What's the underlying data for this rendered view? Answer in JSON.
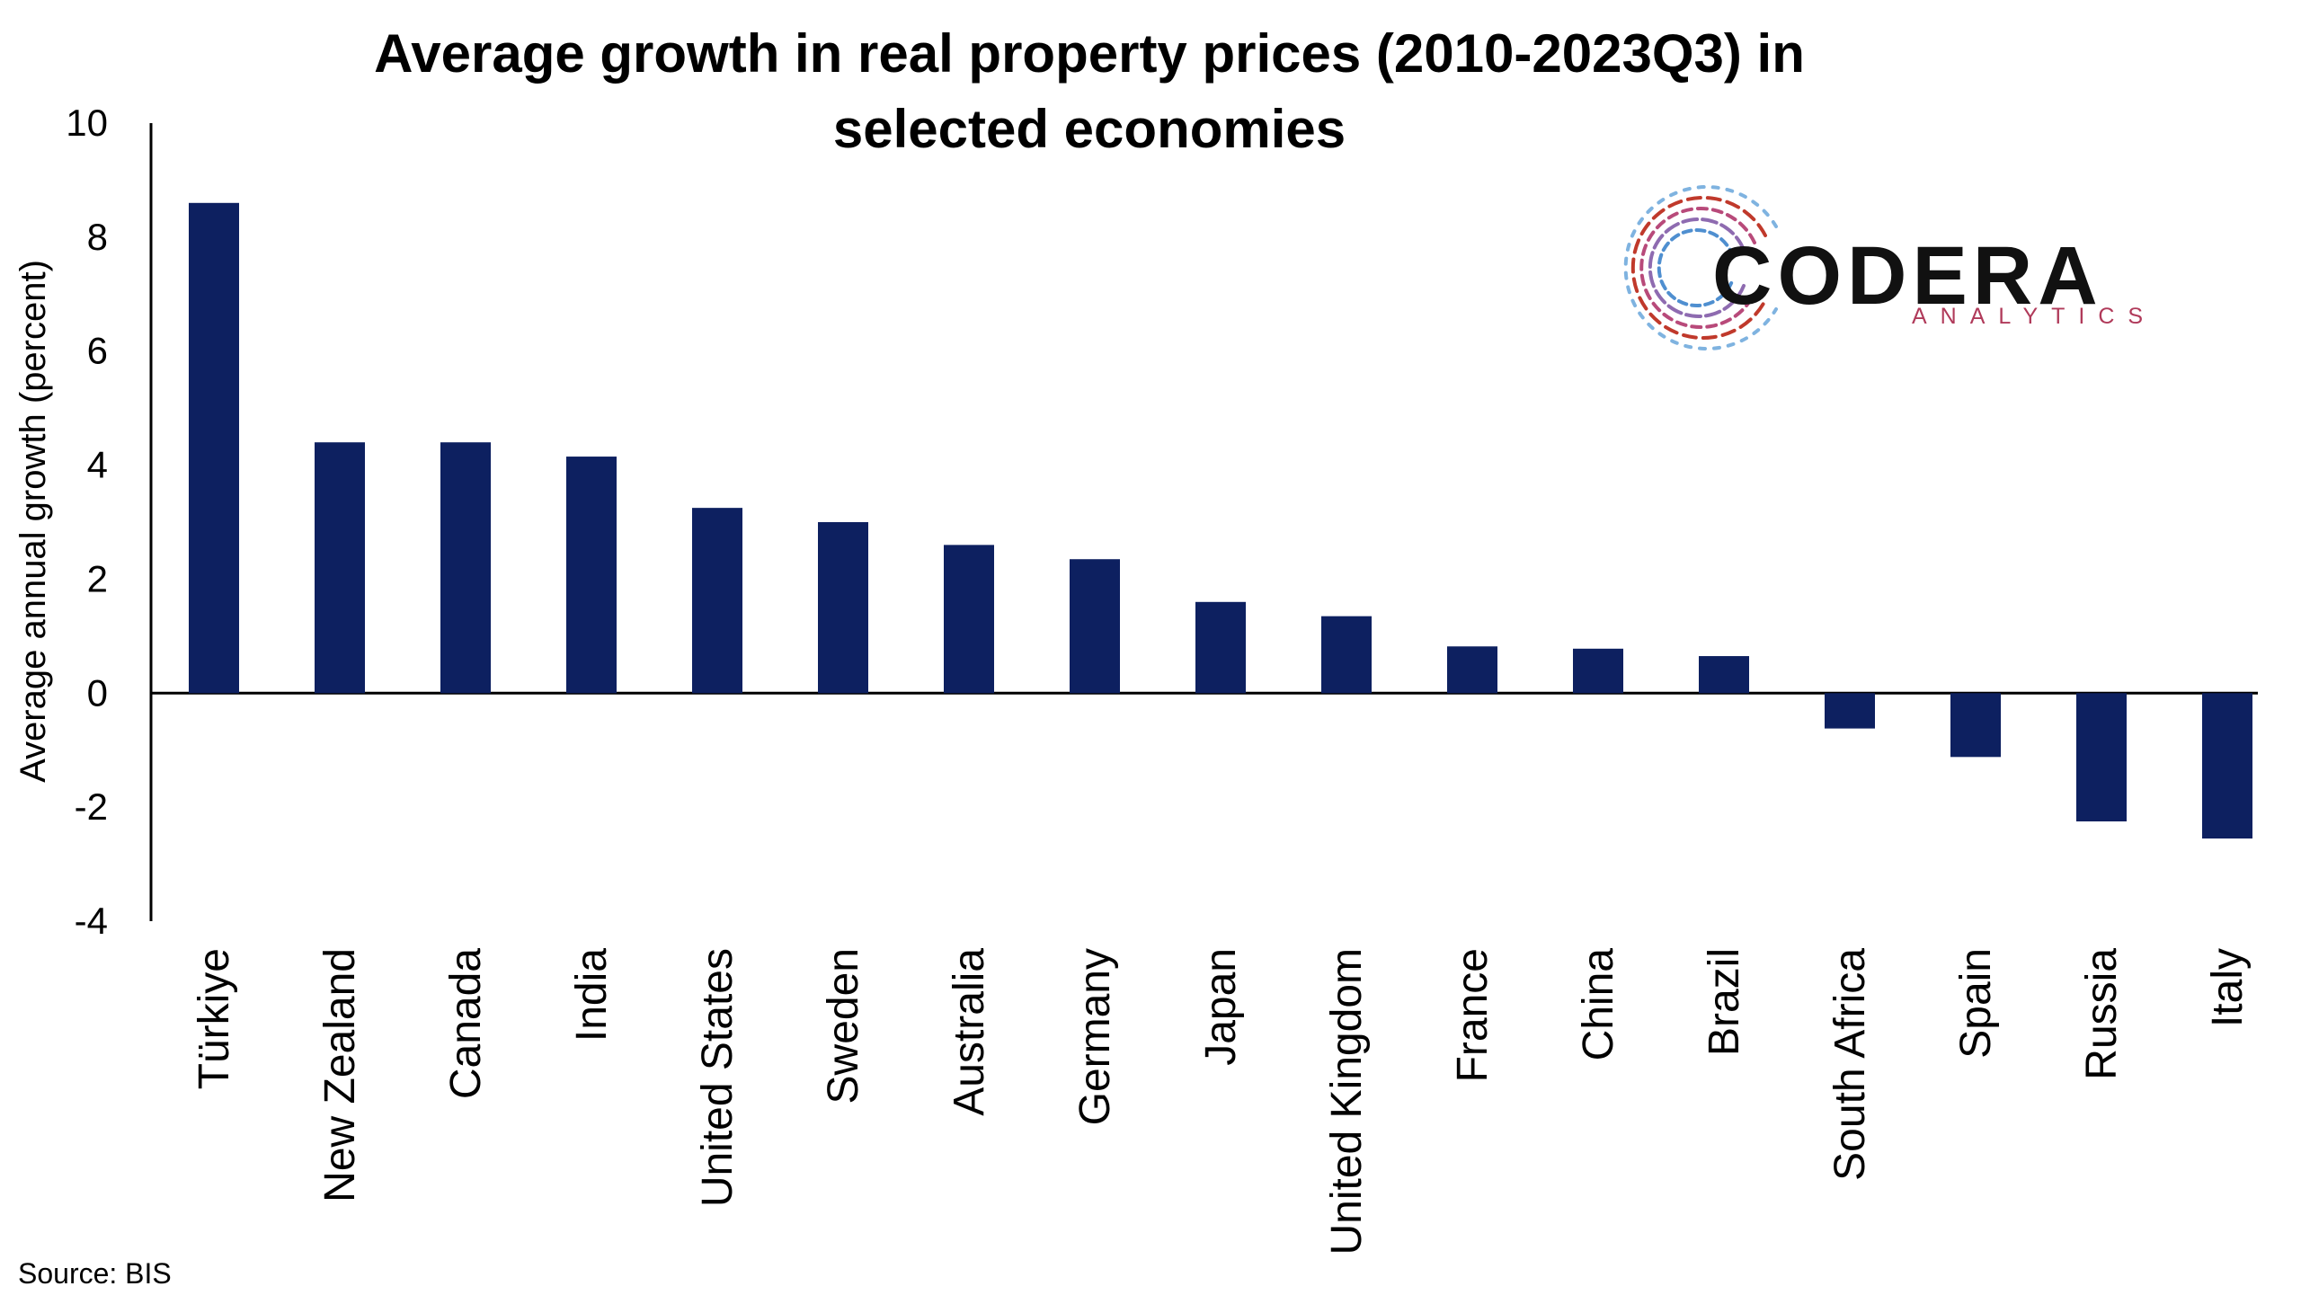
{
  "source": "Source: BIS",
  "logo": {
    "name": "CODERA",
    "tagline": "ANALYTICS",
    "colors": [
      "#c0392b",
      "#9b59b6",
      "#3498db"
    ]
  },
  "chart_data": {
    "type": "bar",
    "title_lines": [
      "Average growth in real property prices (2010-2023Q3) in",
      "selected economies"
    ],
    "xlabel": "",
    "ylabel": "Average annual growth (percent)",
    "ylim": [
      -4,
      10
    ],
    "yticks": [
      10,
      8,
      6,
      4,
      2,
      0,
      -2,
      -4
    ],
    "categories": [
      "Türkiye",
      "New Zealand",
      "Canada",
      "India",
      "United States",
      "Sweden",
      "Australia",
      "Germany",
      "Japan",
      "United Kingdom",
      "France",
      "China",
      "Brazil",
      "South Africa",
      "Spain",
      "Russia",
      "Italy"
    ],
    "values": [
      8.6,
      4.4,
      4.4,
      4.15,
      3.25,
      3.0,
      2.6,
      2.35,
      1.6,
      1.35,
      0.82,
      0.78,
      0.65,
      -0.62,
      -1.12,
      -2.25,
      -2.55
    ],
    "grid": false,
    "legend": "none",
    "bar_color": "#0d2060"
  }
}
